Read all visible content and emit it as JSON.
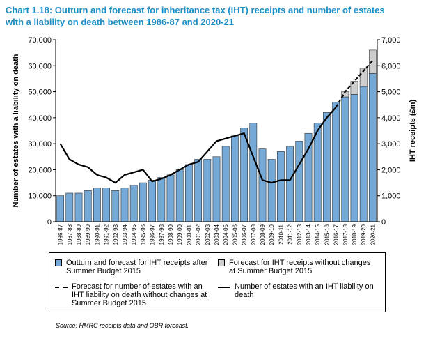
{
  "chart_data": {
    "type": "bar",
    "title": "Chart 1.18: Outturn and forecast for inheritance tax (IHT) receipts and number of estates with a liability on death between 1986-87 and 2020-21",
    "ylabel": "Number of estates with a liability on death",
    "y2label": "IHT receipts (£m)",
    "source": "Source: HMRC receipts data and OBR forecast.",
    "categories": [
      "1986-87",
      "1987-88",
      "1988-89",
      "1989-90",
      "1990-91",
      "1991-92",
      "1992-93",
      "1993-94",
      "1994-95",
      "1995-96",
      "1996-97",
      "1997-98",
      "1998-99",
      "1999-00",
      "2000-01",
      "2001-02",
      "2002-03",
      "2003-04",
      "2004-05",
      "2005-06",
      "2006-07",
      "2007-08",
      "2008-09",
      "2009-10",
      "2010-11",
      "2011-12",
      "2012-13",
      "2013-14",
      "2014-15",
      "2015-16",
      "2016-17",
      "2017-18",
      "2018-19",
      "2019-20",
      "2020-21"
    ],
    "ylim": [
      0,
      70000
    ],
    "yticks": [
      0,
      {
        "value": 10000,
        "label": "10,000"
      },
      {
        "value": 20000,
        "label": "20,000"
      },
      {
        "value": 30000,
        "label": "30,000"
      },
      {
        "value": 40000,
        "label": "40,000"
      },
      {
        "value": 50000,
        "label": "50,000"
      },
      {
        "value": 60000,
        "label": "60,000"
      },
      {
        "value": 70000,
        "label": "70,000"
      }
    ],
    "y2lim": [
      0,
      7000
    ],
    "y2ticks": [
      0,
      {
        "value": 1000,
        "label": "1,000"
      },
      {
        "value": 2000,
        "label": "2,000"
      },
      {
        "value": 3000,
        "label": "3,000"
      },
      {
        "value": 4000,
        "label": "4,000"
      },
      {
        "value": 5000,
        "label": "5,000"
      },
      {
        "value": 6000,
        "label": "6,000"
      },
      {
        "value": 7000,
        "label": "7,000"
      }
    ],
    "grid": false,
    "series": [
      {
        "name": "Outturn and forecast for IHT receipts after Summer Budget 2015",
        "type": "bar",
        "axis": "y2",
        "color": "#74a9d8",
        "values": [
          1000,
          1100,
          1100,
          1200,
          1300,
          1300,
          1200,
          1300,
          1400,
          1500,
          1600,
          1700,
          1800,
          2000,
          2200,
          2400,
          2400,
          2500,
          2900,
          3300,
          3600,
          3800,
          2800,
          2400,
          2700,
          2900,
          3100,
          3400,
          3800,
          4200,
          4600,
          4800,
          4900,
          5200,
          5700
        ]
      },
      {
        "name": "Forecast for IHT receipts without changes at Summer Budget 2015",
        "type": "bar",
        "axis": "y2",
        "color": "#cfcfcf",
        "stacked": true,
        "values": [
          null,
          null,
          null,
          null,
          null,
          null,
          null,
          null,
          null,
          null,
          null,
          null,
          null,
          null,
          null,
          null,
          null,
          null,
          null,
          null,
          null,
          null,
          null,
          null,
          null,
          null,
          null,
          null,
          null,
          null,
          null,
          200,
          500,
          700,
          900
        ]
      },
      {
        "name": "Forecast for number of estates with an IHT liability on death without changes at Summer Budget 2015",
        "type": "line",
        "axis": "y",
        "color": "#000000",
        "dashed": true,
        "values": [
          null,
          null,
          null,
          null,
          null,
          null,
          null,
          null,
          null,
          null,
          null,
          null,
          null,
          null,
          null,
          null,
          null,
          null,
          null,
          null,
          null,
          null,
          null,
          null,
          null,
          null,
          null,
          null,
          null,
          null,
          44000,
          50000,
          54000,
          58000,
          62000
        ]
      },
      {
        "name": "Number of estates with an IHT liability on death",
        "type": "line",
        "axis": "y",
        "color": "#000000",
        "dashed": false,
        "values": [
          30000,
          24000,
          22000,
          21000,
          18000,
          17000,
          15000,
          18000,
          19000,
          20000,
          15500,
          16500,
          18000,
          20000,
          22000,
          23000,
          27000,
          31000,
          32000,
          33000,
          34000,
          25000,
          16000,
          15000,
          16000,
          16000,
          22000,
          28000,
          35000,
          40000,
          44000,
          null,
          null,
          null,
          null
        ]
      }
    ]
  }
}
